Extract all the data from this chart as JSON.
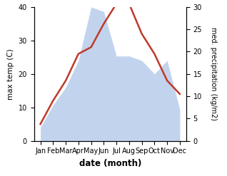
{
  "months": [
    "Jan",
    "Feb",
    "Mar",
    "Apr",
    "May",
    "Jun",
    "Jul",
    "Aug",
    "Sep",
    "Oct",
    "Nov",
    "Dec"
  ],
  "temp_max": [
    5,
    12,
    18,
    26,
    28,
    35,
    41,
    41,
    32,
    26,
    18,
    14
  ],
  "precipitation": [
    3,
    8,
    12,
    18,
    30,
    29,
    19,
    19,
    18,
    15,
    18,
    7
  ],
  "temp_ylim": [
    0,
    40
  ],
  "precip_ylim": [
    0,
    30
  ],
  "xlabel": "date (month)",
  "ylabel_left": "max temp (C)",
  "ylabel_right": "med. precipitation (kg/m2)",
  "line_color": "#c0392b",
  "fill_color": "#aec6e8",
  "fill_alpha": 0.75,
  "line_width": 1.8,
  "bg_color": "#ffffff",
  "figsize": [
    3.18,
    2.47
  ],
  "dpi": 100
}
